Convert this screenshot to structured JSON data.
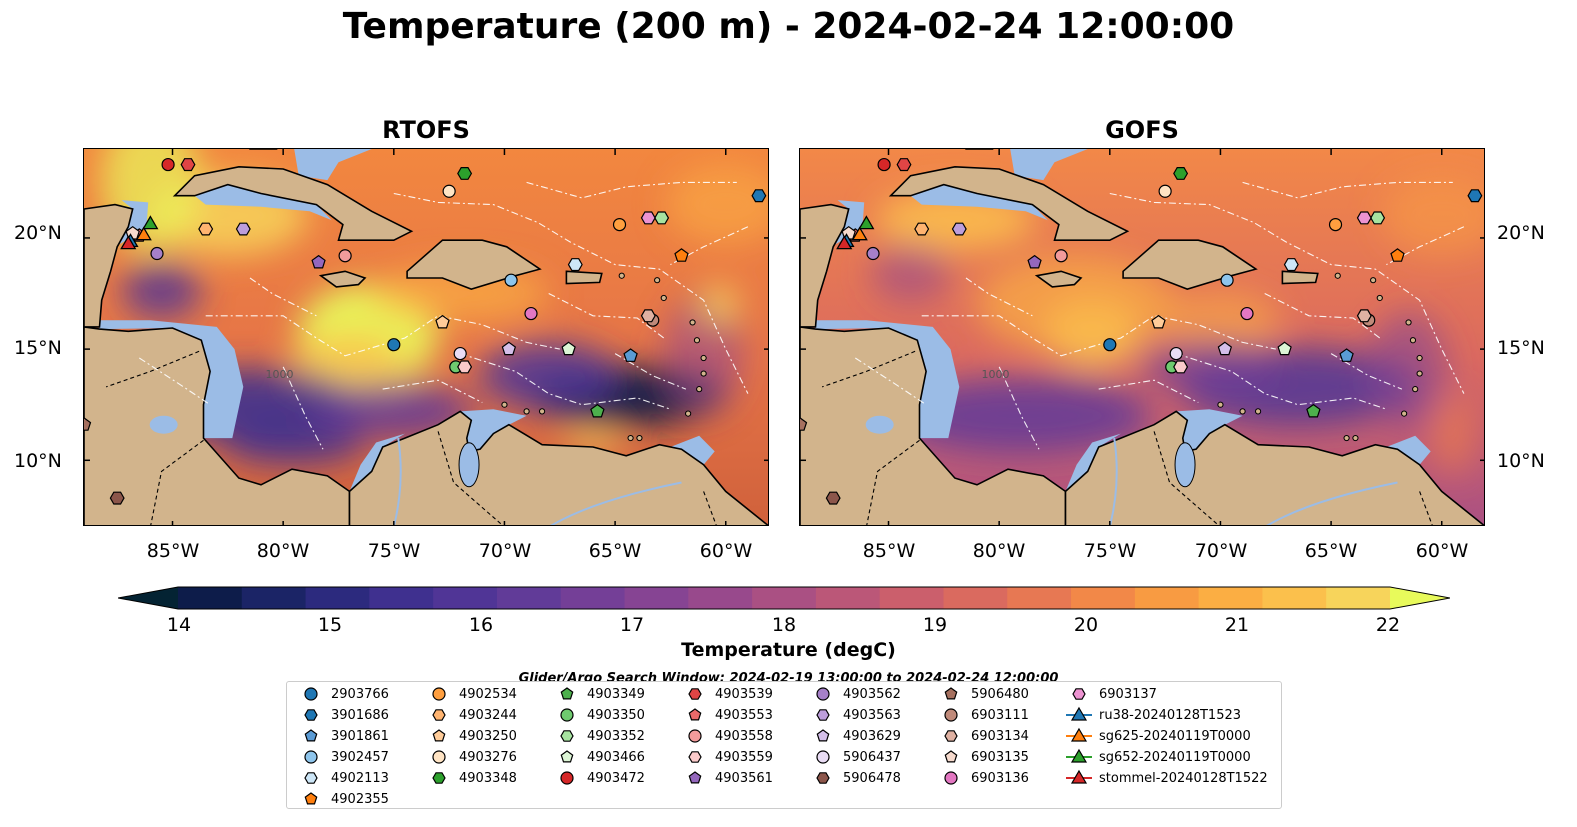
{
  "figure": {
    "title": "Temperature (200 m) - 2024-02-24 12:00:00",
    "panels": [
      {
        "title": "RTOFS"
      },
      {
        "title": "GOFS"
      }
    ],
    "lat_ticks": [
      "20°N",
      "15°N",
      "10°N"
    ],
    "lon_ticks": [
      "85°W",
      "80°W",
      "75°W",
      "70°W",
      "65°W",
      "60°W"
    ],
    "colorbar": {
      "label": "Temperature (degC)",
      "ticks": [
        "14",
        "15",
        "16",
        "17",
        "18",
        "19",
        "20",
        "21",
        "22"
      ],
      "colors": [
        "#042333",
        "#0d1c4a",
        "#1b2466",
        "#2c2a7e",
        "#3f308f",
        "#503596",
        "#613b98",
        "#743f97",
        "#864493",
        "#98498c",
        "#aa5083",
        "#bb5778",
        "#cb5f6c",
        "#da6a5f",
        "#e77853",
        "#f28848",
        "#f89b42",
        "#fbae43",
        "#fbc04c",
        "#f7d45b",
        "#e8fa5b"
      ]
    },
    "search_window": "Glider/Argo Search Window: 2024-02-19 13:00:00 to 2024-02-24 12:00:00",
    "contour_label": "1000"
  },
  "legend": [
    {
      "label": "2903766",
      "marker": "circle",
      "color": "#1f77b4"
    },
    {
      "label": "3901686",
      "marker": "hexagon",
      "color": "#1f77b4"
    },
    {
      "label": "3901861",
      "marker": "pentagon",
      "color": "#5a9bd5"
    },
    {
      "label": "3902457",
      "marker": "circle",
      "color": "#8ec5ec"
    },
    {
      "label": "4902113",
      "marker": "hexagon",
      "color": "#cde6f7"
    },
    {
      "label": "4902355",
      "marker": "pentagon",
      "color": "#ff7f0e"
    },
    {
      "label": "4902534",
      "marker": "circle",
      "color": "#ff9f3f"
    },
    {
      "label": "4903244",
      "marker": "hexagon",
      "color": "#ffb470"
    },
    {
      "label": "4903250",
      "marker": "pentagon",
      "color": "#ffcc99"
    },
    {
      "label": "4903276",
      "marker": "circle",
      "color": "#ffe4c4"
    },
    {
      "label": "4903348",
      "marker": "hexagon",
      "color": "#2ca02c"
    },
    {
      "label": "4903349",
      "marker": "pentagon",
      "color": "#4db04d"
    },
    {
      "label": "4903350",
      "marker": "circle",
      "color": "#6fca6f"
    },
    {
      "label": "4903352",
      "marker": "hexagon",
      "color": "#a7e3a0"
    },
    {
      "label": "4903466",
      "marker": "pentagon",
      "color": "#dcf5d5"
    },
    {
      "label": "4903472",
      "marker": "circle",
      "color": "#d62728"
    },
    {
      "label": "4903539",
      "marker": "hexagon",
      "color": "#e04545"
    },
    {
      "label": "4903553",
      "marker": "pentagon",
      "color": "#ea6a6a"
    },
    {
      "label": "4903558",
      "marker": "circle",
      "color": "#f29b9b"
    },
    {
      "label": "4903559",
      "marker": "hexagon",
      "color": "#fbcaca"
    },
    {
      "label": "4903561",
      "marker": "pentagon",
      "color": "#9467bd"
    },
    {
      "label": "4903562",
      "marker": "circle",
      "color": "#a680c9"
    },
    {
      "label": "4903563",
      "marker": "hexagon",
      "color": "#bd9edb"
    },
    {
      "label": "4903629",
      "marker": "pentagon",
      "color": "#d4bfe9"
    },
    {
      "label": "5906437",
      "marker": "circle",
      "color": "#e9dcf4"
    },
    {
      "label": "5906478",
      "marker": "hexagon",
      "color": "#8c564b"
    },
    {
      "label": "5906480",
      "marker": "pentagon",
      "color": "#a6705f"
    },
    {
      "label": "6903111",
      "marker": "circle",
      "color": "#c08a7a"
    },
    {
      "label": "6903134",
      "marker": "hexagon",
      "color": "#dfb1a2"
    },
    {
      "label": "6903135",
      "marker": "pentagon",
      "color": "#f6dacd"
    },
    {
      "label": "6903136",
      "marker": "circle",
      "color": "#e377c2"
    },
    {
      "label": "6903137",
      "marker": "hexagon",
      "color": "#ec93d1"
    },
    {
      "label": "ru38-20240128T1523",
      "marker": "triangle-line",
      "color": "#1f77b4"
    },
    {
      "label": "sg625-20240119T0000",
      "marker": "triangle-line",
      "color": "#ff7f0e"
    },
    {
      "label": "sg652-20240119T0000",
      "marker": "triangle-line",
      "color": "#2ca02c"
    },
    {
      "label": "stommel-20240128T1522",
      "marker": "triangle-line",
      "color": "#d62728"
    }
  ],
  "floats": [
    {
      "id": "2903766",
      "lon": -75.0,
      "lat": 15.2
    },
    {
      "id": "3901686",
      "lon": -58.5,
      "lat": 21.9
    },
    {
      "id": "3901861",
      "lon": -64.3,
      "lat": 14.7
    },
    {
      "id": "3902457",
      "lon": -69.7,
      "lat": 18.1
    },
    {
      "id": "4902113",
      "lon": -66.8,
      "lat": 18.8
    },
    {
      "id": "4902355",
      "lon": -62.0,
      "lat": 19.2
    },
    {
      "id": "4902534",
      "lon": -64.8,
      "lat": 20.6
    },
    {
      "id": "4903244",
      "lon": -83.5,
      "lat": 20.4
    },
    {
      "id": "4903250",
      "lon": -72.8,
      "lat": 16.2
    },
    {
      "id": "4903276",
      "lon": -72.5,
      "lat": 22.1
    },
    {
      "id": "4903348",
      "lon": -71.8,
      "lat": 22.9
    },
    {
      "id": "4903349",
      "lon": -65.8,
      "lat": 12.2
    },
    {
      "id": "4903350",
      "lon": -72.2,
      "lat": 14.2
    },
    {
      "id": "4903352",
      "lon": -62.9,
      "lat": 20.9
    },
    {
      "id": "4903466",
      "lon": -67.1,
      "lat": 15.0
    },
    {
      "id": "4903472",
      "lon": -85.2,
      "lat": 23.3
    },
    {
      "id": "4903539",
      "lon": -84.3,
      "lat": 23.3
    },
    {
      "id": "4903553",
      "lon": -86.5,
      "lat": 20.1
    },
    {
      "id": "4903558",
      "lon": -77.2,
      "lat": 19.2
    },
    {
      "id": "4903559",
      "lon": -71.8,
      "lat": 14.2
    },
    {
      "id": "4903561",
      "lon": -78.4,
      "lat": 18.9
    },
    {
      "id": "4903562",
      "lon": -85.7,
      "lat": 19.3
    },
    {
      "id": "4903563",
      "lon": -81.8,
      "lat": 20.4
    },
    {
      "id": "4903629",
      "lon": -69.8,
      "lat": 15.0
    },
    {
      "id": "5906437",
      "lon": -72.0,
      "lat": 14.8
    },
    {
      "id": "5906478",
      "lon": -87.5,
      "lat": 8.3
    },
    {
      "id": "5906480",
      "lon": -89.0,
      "lat": 11.6
    },
    {
      "id": "6903111",
      "lon": -63.3,
      "lat": 16.3
    },
    {
      "id": "6903134",
      "lon": -63.5,
      "lat": 16.5
    },
    {
      "id": "6903135",
      "lon": -86.8,
      "lat": 20.2
    },
    {
      "id": "6903136",
      "lon": -68.8,
      "lat": 16.6
    },
    {
      "id": "6903137",
      "lon": -63.5,
      "lat": 20.9
    }
  ],
  "gliders": [
    {
      "id": "ru38-20240128T1523",
      "lon": -86.9,
      "lat": 19.8,
      "color": "#1f77b4"
    },
    {
      "id": "sg625-20240119T0000",
      "lon": -86.3,
      "lat": 20.1,
      "color": "#ff7f0e"
    },
    {
      "id": "sg652-20240119T0000",
      "lon": -86.0,
      "lat": 20.6,
      "color": "#2ca02c"
    },
    {
      "id": "stommel-20240128T1522",
      "lon": -87.0,
      "lat": 19.7,
      "color": "#d62728"
    }
  ],
  "extent": {
    "lon": [
      -89,
      -58
    ],
    "lat": [
      7,
      24
    ]
  }
}
